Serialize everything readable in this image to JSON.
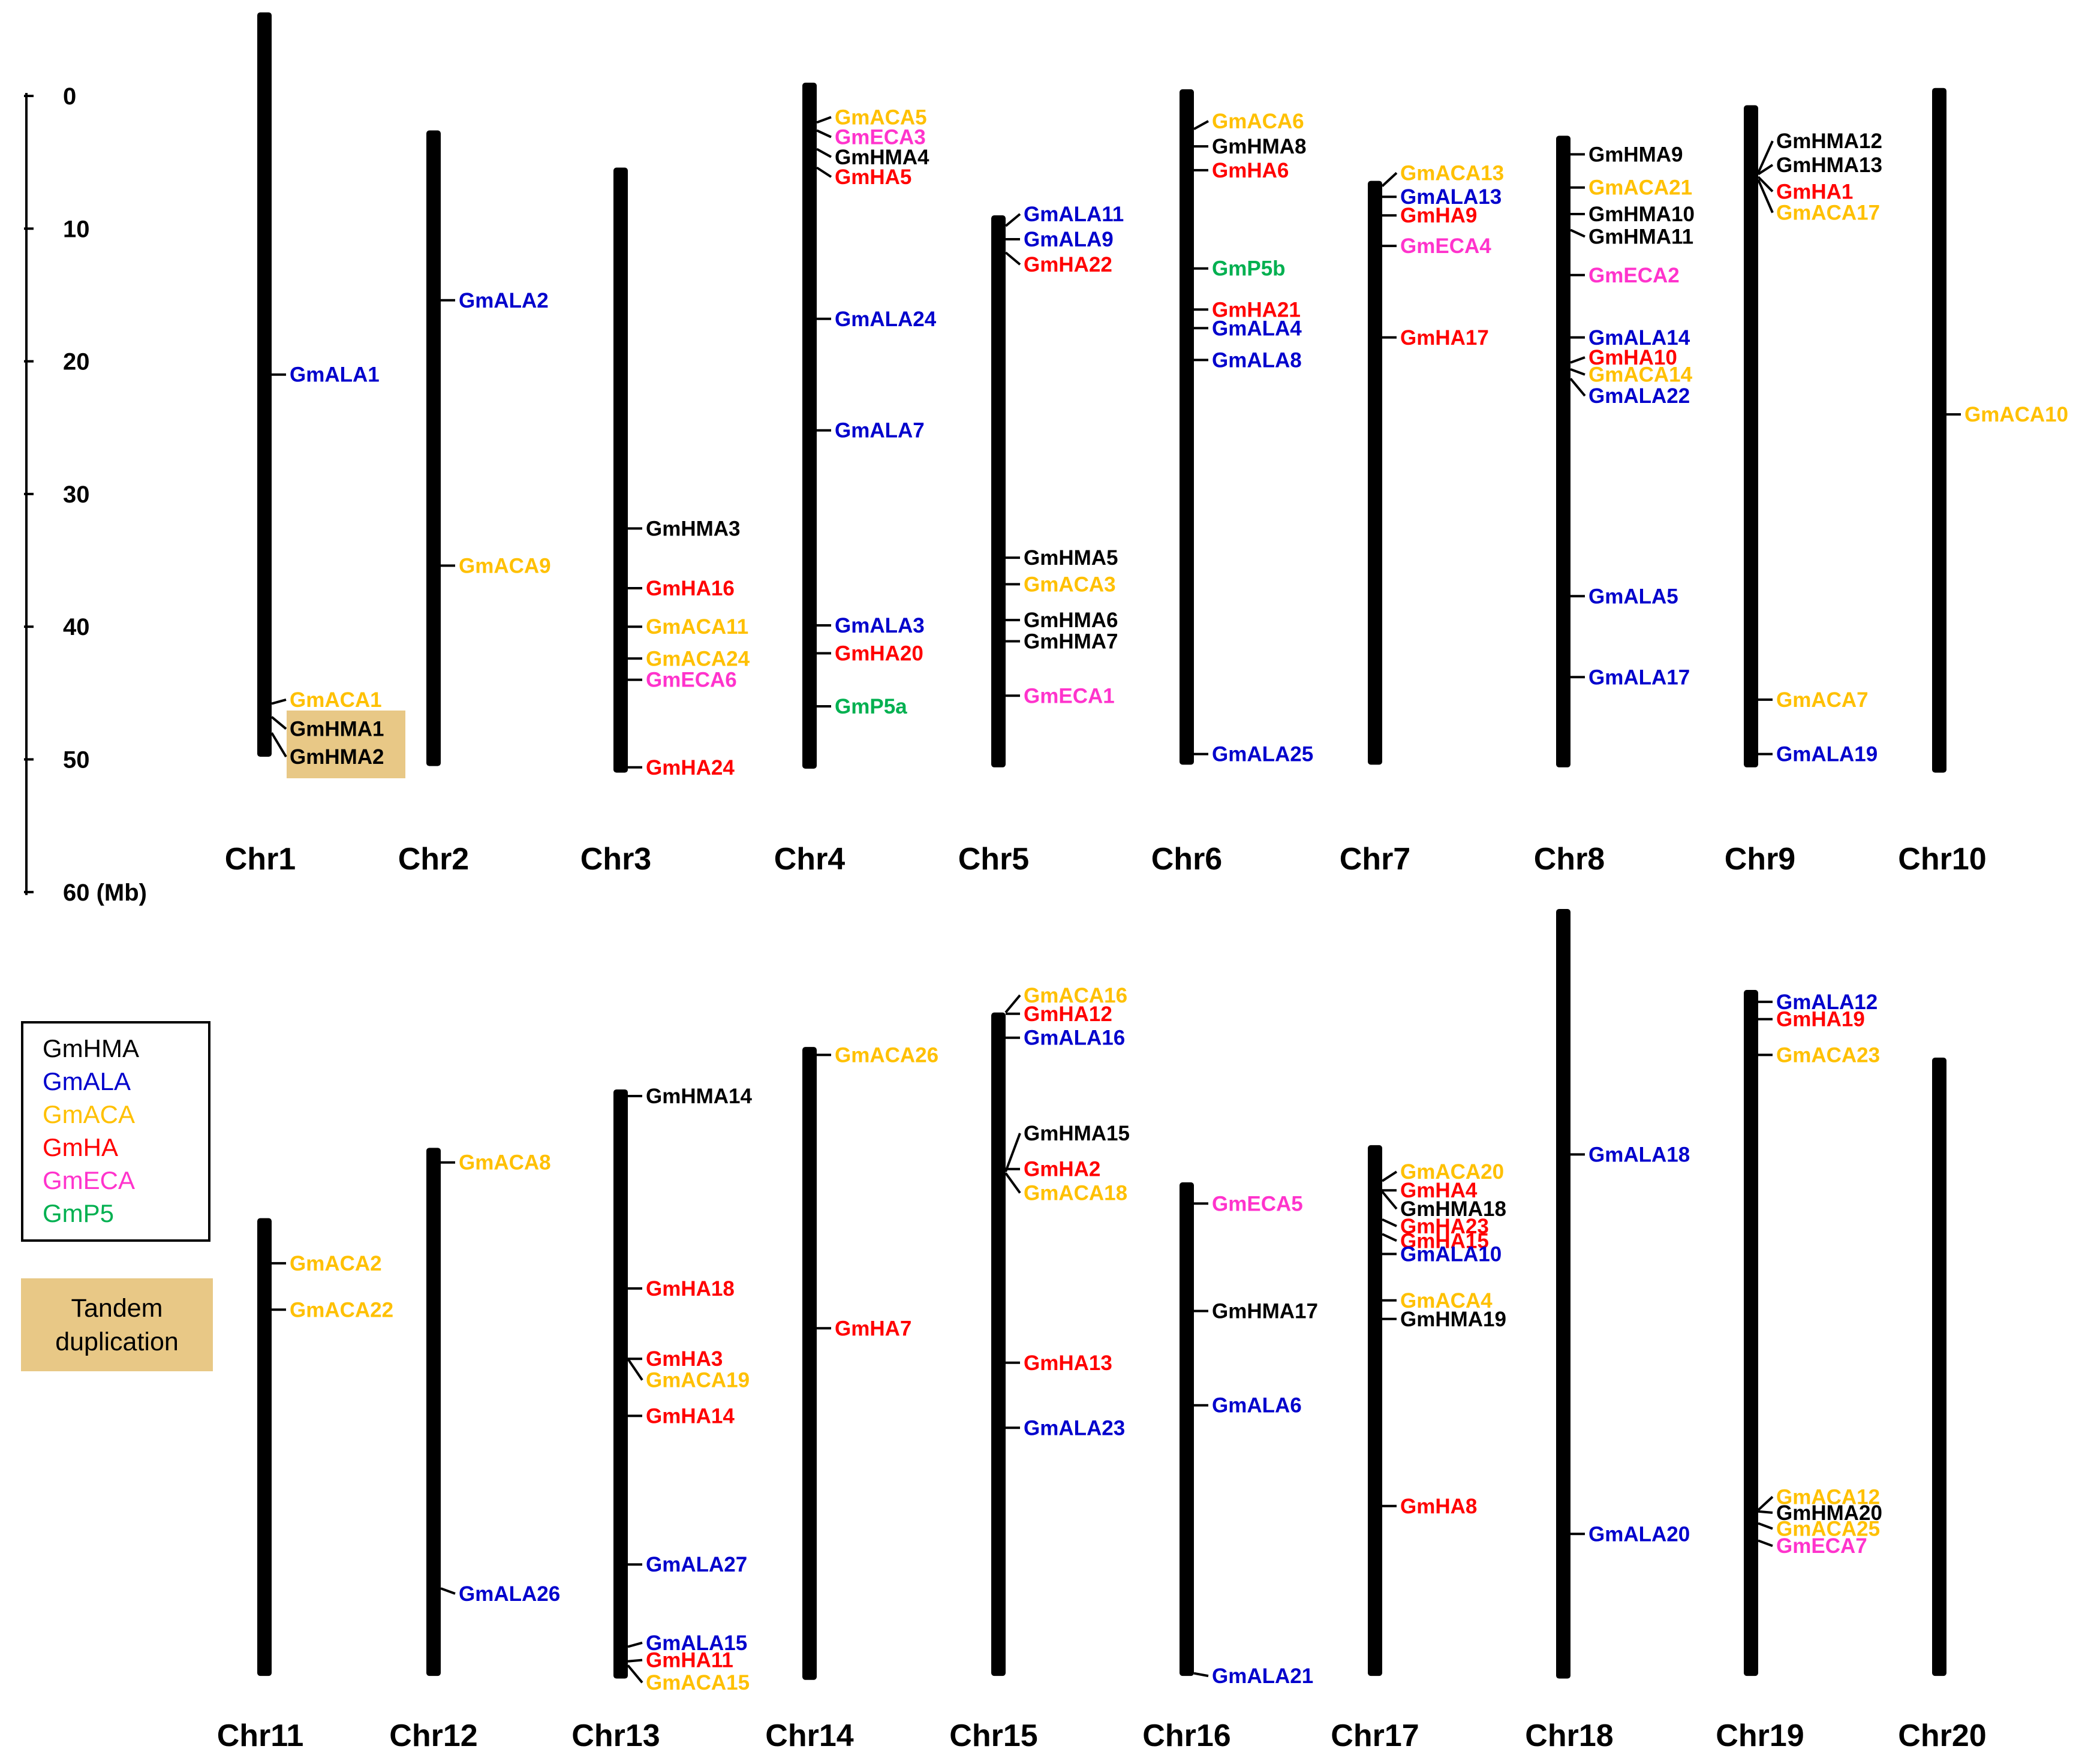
{
  "colors": {
    "HMA": "#000000",
    "ALA": "#0000cc",
    "ACA": "#ffc000",
    "HA": "#ff0000",
    "ECA": "#ff33cc",
    "P5": "#00b050",
    "tandem": "#e8c886"
  },
  "scale_bar": {
    "ticks": [
      {
        "label": "0",
        "mb": 0
      },
      {
        "label": "10",
        "mb": 10
      },
      {
        "label": "20",
        "mb": 20
      },
      {
        "label": "30",
        "mb": 30
      },
      {
        "label": "40",
        "mb": 40
      },
      {
        "label": "50",
        "mb": 50
      },
      {
        "label": "60 (Mb)",
        "mb": 60
      }
    ]
  },
  "legend": {
    "items": [
      {
        "label": "GmHMA",
        "family": "HMA"
      },
      {
        "label": "GmALA",
        "family": "ALA"
      },
      {
        "label": "GmACA",
        "family": "ACA"
      },
      {
        "label": "GmHA",
        "family": "HA"
      },
      {
        "label": "GmECA",
        "family": "ECA"
      },
      {
        "label": "GmP5",
        "family": "P5"
      }
    ],
    "tandem_label_line1": "Tandem",
    "tandem_label_line2": "duplication"
  },
  "chart_data": {
    "type": "chromosome-map",
    "unit": "Mb",
    "chromosomes": [
      {
        "name": "Chr1",
        "row": 0,
        "start": -6.3,
        "end": 49.8,
        "genes": [
          {
            "name": "GmALA1",
            "family": "ALA",
            "pos": 21.0
          },
          {
            "name": "GmACA1",
            "family": "ACA",
            "pos": 45.8,
            "label": 45.5
          },
          {
            "name": "GmHMA1",
            "family": "HMA",
            "pos": 46.8,
            "label": 47.7,
            "tandem": true
          },
          {
            "name": "GmHMA2",
            "family": "HMA",
            "pos": 48.0,
            "label": 49.8,
            "tandem": true
          }
        ]
      },
      {
        "name": "Chr2",
        "row": 0,
        "start": 2.6,
        "end": 50.5,
        "genes": [
          {
            "name": "GmALA2",
            "family": "ALA",
            "pos": 15.4
          },
          {
            "name": "GmACA9",
            "family": "ACA",
            "pos": 35.4
          }
        ]
      },
      {
        "name": "Chr3",
        "row": 0,
        "start": 5.4,
        "end": 51.0,
        "genes": [
          {
            "name": "GmHMA3",
            "family": "HMA",
            "pos": 32.6
          },
          {
            "name": "GmHA16",
            "family": "HA",
            "pos": 37.1
          },
          {
            "name": "GmACA11",
            "family": "ACA",
            "pos": 40.0
          },
          {
            "name": "GmACA24",
            "family": "ACA",
            "pos": 42.4
          },
          {
            "name": "GmECA6",
            "family": "ECA",
            "pos": 44.0
          },
          {
            "name": "GmHA24",
            "family": "HA",
            "pos": 50.6
          }
        ]
      },
      {
        "name": "Chr4",
        "row": 0,
        "start": -1.0,
        "end": 50.7,
        "genes": [
          {
            "name": "GmACA5",
            "family": "ACA",
            "pos": 2.0,
            "label": 1.6
          },
          {
            "name": "GmECA3",
            "family": "ECA",
            "pos": 2.6,
            "label": 3.1
          },
          {
            "name": "GmHMA4",
            "family": "HMA",
            "pos": 4.0,
            "label": 4.6
          },
          {
            "name": "GmHA5",
            "family": "HA",
            "pos": 5.4,
            "label": 6.1
          },
          {
            "name": "GmALA24",
            "family": "ALA",
            "pos": 16.8
          },
          {
            "name": "GmALA7",
            "family": "ALA",
            "pos": 25.2
          },
          {
            "name": "GmALA3",
            "family": "ALA",
            "pos": 39.9
          },
          {
            "name": "GmHA20",
            "family": "HA",
            "pos": 42.0
          },
          {
            "name": "GmP5a",
            "family": "P5",
            "pos": 46.0
          }
        ]
      },
      {
        "name": "Chr5",
        "row": 0,
        "start": 9.0,
        "end": 50.6,
        "genes": [
          {
            "name": "GmALA11",
            "family": "ALA",
            "pos": 9.8,
            "label": 8.9
          },
          {
            "name": "GmALA9",
            "family": "ALA",
            "pos": 10.8
          },
          {
            "name": "GmHA22",
            "family": "HA",
            "pos": 11.8,
            "label": 12.7
          },
          {
            "name": "GmHMA5",
            "family": "HMA",
            "pos": 34.8
          },
          {
            "name": "GmACA3",
            "family": "ACA",
            "pos": 36.8
          },
          {
            "name": "GmHMA6",
            "family": "HMA",
            "pos": 39.5
          },
          {
            "name": "GmHMA7",
            "family": "HMA",
            "pos": 41.1
          },
          {
            "name": "GmECA1",
            "family": "ECA",
            "pos": 45.2
          }
        ]
      },
      {
        "name": "Chr6",
        "row": 0,
        "start": -0.5,
        "end": 50.4,
        "genes": [
          {
            "name": "GmACA6",
            "family": "ACA",
            "pos": 2.5,
            "label": 1.9
          },
          {
            "name": "GmHMA8",
            "family": "HMA",
            "pos": 3.8
          },
          {
            "name": "GmHA6",
            "family": "HA",
            "pos": 5.6
          },
          {
            "name": "GmP5b",
            "family": "P5",
            "pos": 13.0
          },
          {
            "name": "GmHA21",
            "family": "HA",
            "pos": 16.1
          },
          {
            "name": "GmALA4",
            "family": "ALA",
            "pos": 17.5
          },
          {
            "name": "GmALA8",
            "family": "ALA",
            "pos": 19.9
          },
          {
            "name": "GmALA25",
            "family": "ALA",
            "pos": 49.6
          }
        ]
      },
      {
        "name": "Chr7",
        "row": 0,
        "start": 6.4,
        "end": 50.4,
        "genes": [
          {
            "name": "GmACA13",
            "family": "ACA",
            "pos": 6.8,
            "label": 5.8
          },
          {
            "name": "GmALA13",
            "family": "ALA",
            "pos": 7.6
          },
          {
            "name": "GmHA9",
            "family": "HA",
            "pos": 9.0
          },
          {
            "name": "GmECA4",
            "family": "ECA",
            "pos": 11.3
          },
          {
            "name": "GmHA17",
            "family": "HA",
            "pos": 18.2
          }
        ]
      },
      {
        "name": "Chr8",
        "row": 0,
        "start": 3.0,
        "end": 50.6,
        "genes": [
          {
            "name": "GmHMA9",
            "family": "HMA",
            "pos": 4.4
          },
          {
            "name": "GmACA21",
            "family": "ACA",
            "pos": 6.9
          },
          {
            "name": "GmHMA10",
            "family": "HMA",
            "pos": 8.9
          },
          {
            "name": "GmHMA11",
            "family": "HMA",
            "pos": 10.1,
            "label": 10.6
          },
          {
            "name": "GmECA2",
            "family": "ECA",
            "pos": 13.5
          },
          {
            "name": "GmALA14",
            "family": "ALA",
            "pos": 18.2
          },
          {
            "name": "GmHA10",
            "family": "HA",
            "pos": 20.1,
            "label": 19.7
          },
          {
            "name": "GmACA14",
            "family": "ACA",
            "pos": 20.6,
            "label": 21.0
          },
          {
            "name": "GmALA22",
            "family": "ALA",
            "pos": 21.3,
            "label": 22.6
          },
          {
            "name": "GmALA5",
            "family": "ALA",
            "pos": 37.7
          },
          {
            "name": "GmALA17",
            "family": "ALA",
            "pos": 43.8
          }
        ]
      },
      {
        "name": "Chr9",
        "row": 0,
        "start": 0.7,
        "end": 50.6,
        "genes": [
          {
            "name": "GmHMA12",
            "family": "HMA",
            "pos": 5.8,
            "label": 3.4
          },
          {
            "name": "GmHMA13",
            "family": "HMA",
            "pos": 5.9,
            "label": 5.2
          },
          {
            "name": "GmHA1",
            "family": "HA",
            "pos": 6.1,
            "label": 7.2
          },
          {
            "name": "GmACA17",
            "family": "ACA",
            "pos": 6.3,
            "label": 8.8
          },
          {
            "name": "GmACA7",
            "family": "ACA",
            "pos": 45.5
          },
          {
            "name": "GmALA19",
            "family": "ALA",
            "pos": 49.6
          }
        ]
      },
      {
        "name": "Chr10",
        "row": 0,
        "start": -0.6,
        "end": 51.0,
        "genes": [
          {
            "name": "GmACA10",
            "family": "ACA",
            "pos": 24.0
          }
        ]
      },
      {
        "name": "Chr11",
        "row": 1,
        "start": 23.3,
        "end": 57.8,
        "genes": [
          {
            "name": "GmACA2",
            "family": "ACA",
            "pos": 26.7
          },
          {
            "name": "GmACA22",
            "family": "ACA",
            "pos": 30.2
          }
        ]
      },
      {
        "name": "Chr12",
        "row": 1,
        "start": 18.0,
        "end": 57.8,
        "genes": [
          {
            "name": "GmACA8",
            "family": "ACA",
            "pos": 19.1
          },
          {
            "name": "GmALA26",
            "family": "ALA",
            "pos": 51.2,
            "label": 51.6
          }
        ]
      },
      {
        "name": "Chr13",
        "row": 1,
        "start": 13.6,
        "end": 58.0,
        "genes": [
          {
            "name": "GmHMA14",
            "family": "HMA",
            "pos": 14.1
          },
          {
            "name": "GmHA18",
            "family": "HA",
            "pos": 28.6
          },
          {
            "name": "GmHA3",
            "family": "HA",
            "pos": 33.9
          },
          {
            "name": "GmACA19",
            "family": "ACA",
            "pos": 33.9,
            "label": 35.5
          },
          {
            "name": "GmHA14",
            "family": "HA",
            "pos": 38.2
          },
          {
            "name": "GmALA27",
            "family": "ALA",
            "pos": 49.4
          },
          {
            "name": "GmALA15",
            "family": "ALA",
            "pos": 55.6,
            "label": 55.3
          },
          {
            "name": "GmHA11",
            "family": "HA",
            "pos": 56.7,
            "label": 56.6
          },
          {
            "name": "GmACA15",
            "family": "ACA",
            "pos": 57.0,
            "label": 58.3
          }
        ]
      },
      {
        "name": "Chr14",
        "row": 1,
        "start": 10.4,
        "end": 58.1,
        "genes": [
          {
            "name": "GmACA26",
            "family": "ACA",
            "pos": 11.0
          },
          {
            "name": "GmHA7",
            "family": "HA",
            "pos": 31.6
          }
        ]
      },
      {
        "name": "Chr15",
        "row": 1,
        "start": 7.8,
        "end": 57.8,
        "genes": [
          {
            "name": "GmACA16",
            "family": "ACA",
            "pos": 7.8,
            "label": 6.5
          },
          {
            "name": "GmHA12",
            "family": "HA",
            "pos": 7.9
          },
          {
            "name": "GmALA16",
            "family": "ALA",
            "pos": 9.7
          },
          {
            "name": "GmHMA15",
            "family": "HMA",
            "pos": 19.8,
            "label": 16.9
          },
          {
            "name": "GmHA2",
            "family": "HA",
            "pos": 19.6
          },
          {
            "name": "GmACA18",
            "family": "ACA",
            "pos": 19.9,
            "label": 21.4
          },
          {
            "name": "GmHA13",
            "family": "HA",
            "pos": 34.2
          },
          {
            "name": "GmALA23",
            "family": "ALA",
            "pos": 39.1
          }
        ]
      },
      {
        "name": "Chr16",
        "row": 1,
        "start": 20.6,
        "end": 57.8,
        "genes": [
          {
            "name": "GmECA5",
            "family": "ECA",
            "pos": 22.2
          },
          {
            "name": "GmHMA17",
            "family": "HMA",
            "pos": 30.3
          },
          {
            "name": "GmALA6",
            "family": "ALA",
            "pos": 37.4
          },
          {
            "name": "GmALA21",
            "family": "ALA",
            "pos": 57.6,
            "label": 57.8
          }
        ]
      },
      {
        "name": "Chr17",
        "row": 1,
        "start": 17.8,
        "end": 57.8,
        "genes": [
          {
            "name": "GmACA20",
            "family": "ACA",
            "pos": 20.5,
            "label": 19.8
          },
          {
            "name": "GmHA4",
            "family": "HA",
            "pos": 21.2
          },
          {
            "name": "GmHMA18",
            "family": "HMA",
            "pos": 21.3,
            "label": 22.6
          },
          {
            "name": "GmHA23",
            "family": "HA",
            "pos": 23.4,
            "label": 23.9
          },
          {
            "name": "GmHA15",
            "family": "HA",
            "pos": 24.5,
            "label": 25.0
          },
          {
            "name": "GmALA10",
            "family": "ALA",
            "pos": 26.0
          },
          {
            "name": "GmACA4",
            "family": "ACA",
            "pos": 29.5
          },
          {
            "name": "GmHMA19",
            "family": "HMA",
            "pos": 30.9
          },
          {
            "name": "GmHA8",
            "family": "HA",
            "pos": 45.0
          }
        ]
      },
      {
        "name": "Chr18",
        "row": 1,
        "start": 0.0,
        "end": 58.0,
        "genes": [
          {
            "name": "GmALA18",
            "family": "ALA",
            "pos": 18.5
          },
          {
            "name": "GmALA20",
            "family": "ALA",
            "pos": 47.1
          }
        ]
      },
      {
        "name": "Chr19",
        "row": 1,
        "start": 6.1,
        "end": 57.8,
        "genes": [
          {
            "name": "GmALA12",
            "family": "ALA",
            "pos": 7.0
          },
          {
            "name": "GmHA19",
            "family": "HA",
            "pos": 8.3
          },
          {
            "name": "GmACA23",
            "family": "ACA",
            "pos": 11.0
          },
          {
            "name": "GmACA12",
            "family": "ACA",
            "pos": 45.3,
            "label": 44.3
          },
          {
            "name": "GmHMA20",
            "family": "HMA",
            "pos": 45.4,
            "label": 45.5
          },
          {
            "name": "GmACA25",
            "family": "ACA",
            "pos": 46.3,
            "label": 46.7
          },
          {
            "name": "GmECA7",
            "family": "ECA",
            "pos": 47.6,
            "label": 48.0
          }
        ]
      },
      {
        "name": "Chr20",
        "row": 1,
        "start": 11.2,
        "end": 57.8,
        "genes": []
      }
    ]
  }
}
